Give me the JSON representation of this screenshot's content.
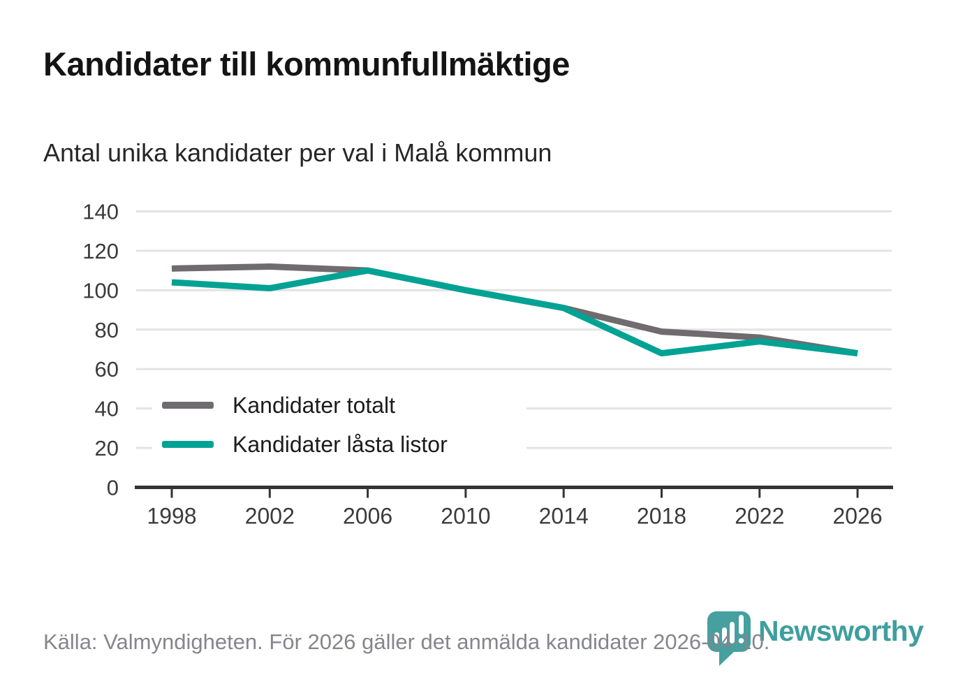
{
  "header": {
    "title": "Kandidater till kommunfullmäktige",
    "subtitle": "Antal unika kandidater per val i Malå kommun"
  },
  "chart_data": {
    "type": "line",
    "categories": [
      "1998",
      "2002",
      "2006",
      "2010",
      "2014",
      "2018",
      "2022",
      "2026"
    ],
    "series": [
      {
        "name": "Kandidater totalt",
        "color": "#706b6f",
        "values": [
          111,
          112,
          110,
          100,
          91,
          79,
          76,
          68
        ]
      },
      {
        "name": "Kandidater låsta listor",
        "color": "#00a294",
        "values": [
          104,
          101,
          110,
          100,
          91,
          68,
          74,
          68
        ]
      }
    ],
    "title": "Kandidater till kommunfullmäktige",
    "subtitle": "Antal unika kandidater per val i Malå kommun",
    "xlabel": "",
    "ylabel": "",
    "ylim": [
      0,
      140
    ],
    "yticks": [
      0,
      20,
      40,
      60,
      80,
      100,
      120,
      140
    ],
    "grid": "horizontal",
    "legend_position": "inside-bottom-left"
  },
  "footer": {
    "source": "Källa: Valmyndigheten. För 2026 gäller det anmälda kandidater 2026-04-10.",
    "brand": "Newsworthy"
  },
  "colors": {
    "series_gray": "#706b6f",
    "series_teal": "#00a294",
    "grid_line": "#e3e3e3",
    "axis_line": "#333333",
    "axis_text": "#3b3b3b",
    "title_text": "#141414",
    "source_text": "#85858d",
    "brand_teal": "#3f9e9e",
    "logo_fill": "#45a09f"
  }
}
